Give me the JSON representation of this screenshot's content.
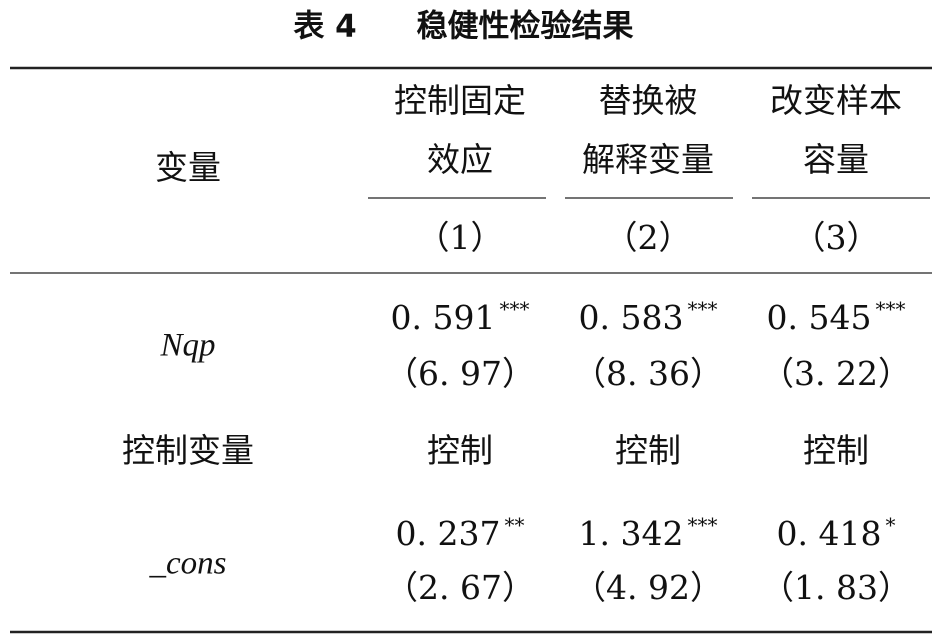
{
  "title": {
    "label": "表 4",
    "text": "稳健性检验结果"
  },
  "table": {
    "header": {
      "label": "变量",
      "columns": [
        {
          "name": [
            "控制固定",
            "效应"
          ],
          "number": "（1）"
        },
        {
          "name": [
            "替换被",
            "解释变量"
          ],
          "number": "（2）"
        },
        {
          "name": [
            "改变样本",
            "容量"
          ],
          "number": "（3）"
        }
      ]
    },
    "rows": [
      {
        "label": "Nqp",
        "cells": [
          {
            "coef": "0. 591",
            "stars": "***",
            "t": "（6. 97）"
          },
          {
            "coef": "0. 583",
            "stars": "***",
            "t": "（8. 36）"
          },
          {
            "coef": "0. 545",
            "stars": "***",
            "t": "（3. 22）"
          }
        ]
      },
      {
        "label": "控制变量",
        "cells": [
          {
            "text": "控制"
          },
          {
            "text": "控制"
          },
          {
            "text": "控制"
          }
        ]
      },
      {
        "label": "_cons",
        "cells": [
          {
            "coef": "0. 237",
            "stars": "**",
            "t": "（2. 67）"
          },
          {
            "coef": "1. 342",
            "stars": "***",
            "t": "（4. 92）"
          },
          {
            "coef": "0. 418",
            "stars": "*",
            "t": "（1. 83）"
          }
        ]
      }
    ]
  }
}
